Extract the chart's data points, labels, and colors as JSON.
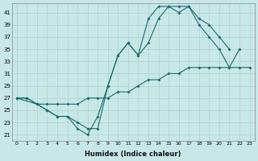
{
  "xlabel": "Humidex (Indice chaleur)",
  "xlim": [
    -0.5,
    23.5
  ],
  "ylim": [
    20,
    42.5
  ],
  "xticks": [
    0,
    1,
    2,
    3,
    4,
    5,
    6,
    7,
    8,
    9,
    10,
    11,
    12,
    13,
    14,
    15,
    16,
    17,
    18,
    19,
    20,
    21,
    22,
    23
  ],
  "yticks": [
    21,
    23,
    25,
    27,
    29,
    31,
    33,
    35,
    37,
    39,
    41
  ],
  "color": "#1a6b6b",
  "bg_color": "#c8e8e8",
  "line1_x": [
    0,
    1,
    2,
    3,
    4,
    5,
    6,
    7,
    8,
    9,
    10,
    11,
    12,
    13,
    14,
    15,
    16,
    17,
    18,
    19,
    20,
    21
  ],
  "line1_y": [
    27,
    27,
    26,
    25,
    24,
    24,
    23,
    22,
    22,
    29,
    34,
    36,
    34,
    36,
    40,
    42,
    42,
    42,
    40,
    39,
    37,
    35
  ],
  "line2_x": [
    0,
    2,
    3,
    4,
    5,
    6,
    7,
    8,
    9,
    10,
    11,
    12,
    13,
    14,
    15,
    16,
    17,
    18,
    19,
    20,
    21,
    22,
    23
  ],
  "line2_y": [
    27,
    26,
    26,
    26,
    26,
    26,
    27,
    27,
    27,
    28,
    28,
    29,
    30,
    30,
    31,
    31,
    32,
    32,
    32,
    32,
    32,
    32,
    32
  ],
  "line3_x": [
    0,
    1,
    2,
    3,
    4,
    5,
    6,
    7,
    8,
    9,
    10,
    11,
    12,
    13,
    14,
    15,
    16,
    17,
    18,
    19,
    20,
    21,
    22
  ],
  "line3_y": [
    27,
    27,
    26,
    25,
    24,
    24,
    22,
    21,
    24,
    29,
    34,
    36,
    34,
    40,
    42,
    42,
    41,
    42,
    39,
    37,
    35,
    32,
    35
  ]
}
